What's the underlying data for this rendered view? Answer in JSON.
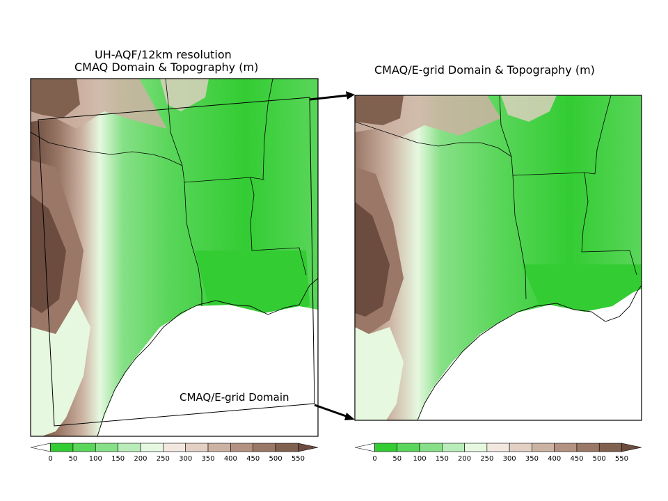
{
  "left_panel": {
    "title_line1": "UH-AQF/12km resolution",
    "title_line2": "CMAQ Domain & Topography (m)",
    "inner_domain_label": "CMAQ/E-grid Domain"
  },
  "right_panel": {
    "title": "CMAQ/E-grid Domain & Topography (m)"
  },
  "colorbar": {
    "unit": "m",
    "ticks": [
      "0",
      "50",
      "100",
      "150",
      "200",
      "250",
      "300",
      "350",
      "400",
      "450",
      "500",
      "550"
    ],
    "colors": [
      "#ffffff",
      "#33cc33",
      "#5ad65a",
      "#87e087",
      "#b8ecb8",
      "#e6f8e0",
      "#f2e8e0",
      "#e3d0c4",
      "#ccb2a2",
      "#b39282",
      "#9a7766",
      "#80604f",
      "#6b4c3e"
    ]
  },
  "legend_colors": {
    "water": "#ffffff",
    "border": "#000000",
    "arrow": "#000000"
  }
}
